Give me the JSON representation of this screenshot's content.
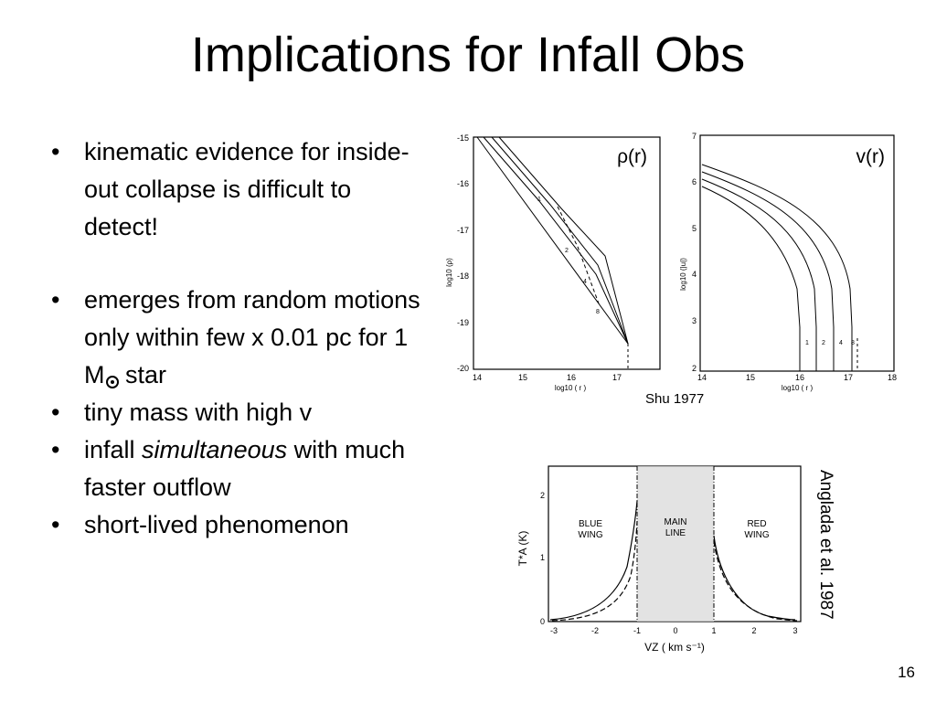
{
  "slide": {
    "title": "Implications for Infall Obs",
    "page_number": "16",
    "bullets": [
      {
        "text": "kinematic evidence for inside-out collapse is difficult to detect!"
      },
      {
        "pre": "emerges from random motions only within few x 0.01 pc for 1 M",
        "sub_symbol": "sun-symbol",
        "post": " star"
      },
      {
        "text": "tiny mass with high v"
      },
      {
        "pre": "infall ",
        "italic": "simultaneous",
        "post": " with much faster outflow"
      },
      {
        "text": "short-lived phenomenon"
      }
    ]
  },
  "figures": {
    "shu": {
      "caption": "Shu 1977",
      "left_panel": {
        "label": "ρ(r)",
        "ylabel": "log10 (ρ)",
        "xlabel": "log10 ( r )",
        "yticks": [
          "-15",
          "-16",
          "-17",
          "-18",
          "-19",
          "-20"
        ],
        "xticks": [
          "14",
          "15",
          "16",
          "17"
        ],
        "curve_labels": [
          "1",
          "2",
          "4",
          "8"
        ]
      },
      "right_panel": {
        "label": "v(r)",
        "ylabel": "log10 (|u|)",
        "xlabel": "log10 ( r )",
        "yticks": [
          "7",
          "6",
          "5",
          "4",
          "3",
          "2"
        ],
        "xticks": [
          "14",
          "15",
          "16",
          "17",
          "18"
        ],
        "curve_labels": [
          "1",
          "2",
          "4",
          "8"
        ]
      }
    },
    "anglada": {
      "caption": "Anglada et al. 1987",
      "ylabel": "T*A (K)",
      "xlabel": "VZ ( km s⁻¹)",
      "yticks": [
        "2",
        "1",
        "0"
      ],
      "xticks": [
        "-3",
        "-2",
        "-1",
        "0",
        "1",
        "2",
        "3"
      ],
      "region_labels": {
        "blue": [
          "BLUE",
          "WING"
        ],
        "main": [
          "MAIN",
          "LINE"
        ],
        "red": [
          "RED",
          "WING"
        ]
      }
    }
  }
}
